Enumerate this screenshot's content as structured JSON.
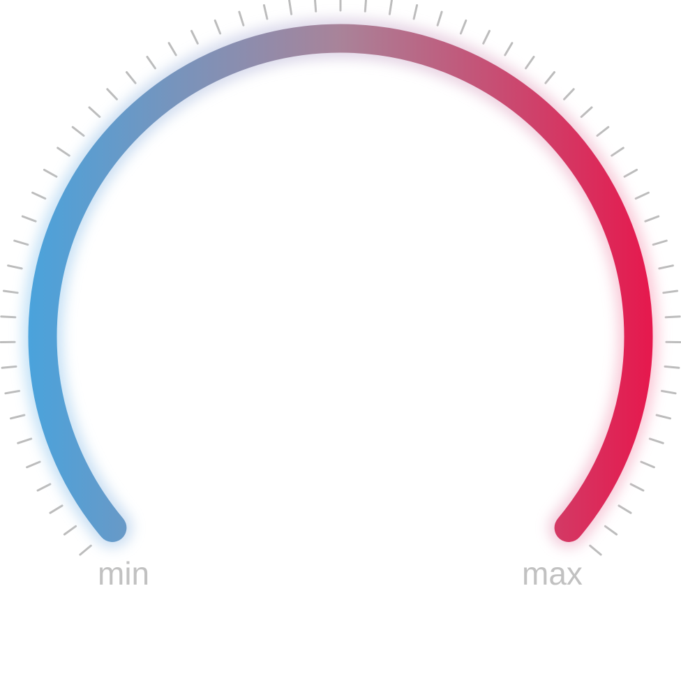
{
  "gauge": {
    "min_label": "min",
    "max_label": "max",
    "colors": {
      "start": "#4aa3dc",
      "mid": "#a98399",
      "end": "#e6184d",
      "tick": "#bcbcbc",
      "label": "#c1c1c1",
      "glow_start": "#bfe0f6",
      "glow_end": "#fbc5d4"
    }
  }
}
